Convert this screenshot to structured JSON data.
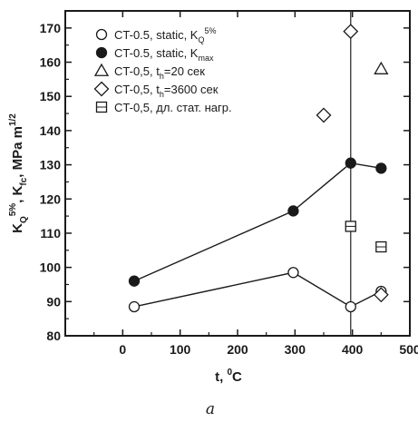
{
  "chart_data": {
    "type": "scatter",
    "xlabel": {
      "main": "t, ",
      "sup": "0",
      "tail": "C"
    },
    "ylabel": {
      "k1": "K",
      "k1_sub": "Q",
      "k1_sup": "5%",
      "sep": ", K",
      "k2_sub": "fc",
      "unit": ", MPa m",
      "unit_sup": "1/2"
    },
    "xlim": [
      -100,
      500
    ],
    "ylim": [
      80,
      175
    ],
    "xticks": [
      0,
      100,
      200,
      300,
      400,
      500
    ],
    "yticks": [
      80,
      90,
      100,
      110,
      120,
      130,
      140,
      150,
      160,
      170
    ],
    "grid": false,
    "legend_position": "top-left",
    "series": [
      {
        "name": "CT-0.5, static, K_Q^5%",
        "legend": {
          "a": "CT-0.5, static, K",
          "sub": "Q",
          "sup": "5%"
        },
        "marker": "open-circle",
        "connected": true,
        "points": [
          [
            20,
            88.5
          ],
          [
            297,
            98.5
          ],
          [
            397,
            88.5
          ],
          [
            450,
            93
          ]
        ]
      },
      {
        "name": "CT-0.5, static, K_max",
        "legend": {
          "a": "CT-0.5, static, K",
          "sub": "max"
        },
        "marker": "filled-circle",
        "connected": true,
        "points": [
          [
            20,
            96
          ],
          [
            297,
            116.5
          ],
          [
            397,
            130.5
          ],
          [
            450,
            129
          ]
        ]
      },
      {
        "name": "CT-0,5, t_h=20 сек",
        "legend": {
          "a": "CT-0,5, t",
          "sub": "h",
          "b": "=20 сек"
        },
        "marker": "open-triangle",
        "connected": false,
        "points": [
          [
            450,
            158
          ]
        ]
      },
      {
        "name": "CT-0,5, t_h=3600 сек",
        "legend": {
          "a": "CT-0,5, t",
          "sub": "h",
          "b": "=3600 сек"
        },
        "marker": "open-diamond",
        "connected": false,
        "points": [
          [
            350,
            144.5
          ],
          [
            397,
            169
          ],
          [
            450,
            92
          ]
        ]
      },
      {
        "name": "CT-0,5, дл. стат. нагр.",
        "legend": {
          "a": "CT-0,5, дл. стат. нагр."
        },
        "marker": "boxed-plus",
        "connected": false,
        "points": [
          [
            397,
            112
          ],
          [
            450,
            106
          ]
        ]
      }
    ],
    "reference_line_x": 397,
    "subfigure_label": "a"
  }
}
